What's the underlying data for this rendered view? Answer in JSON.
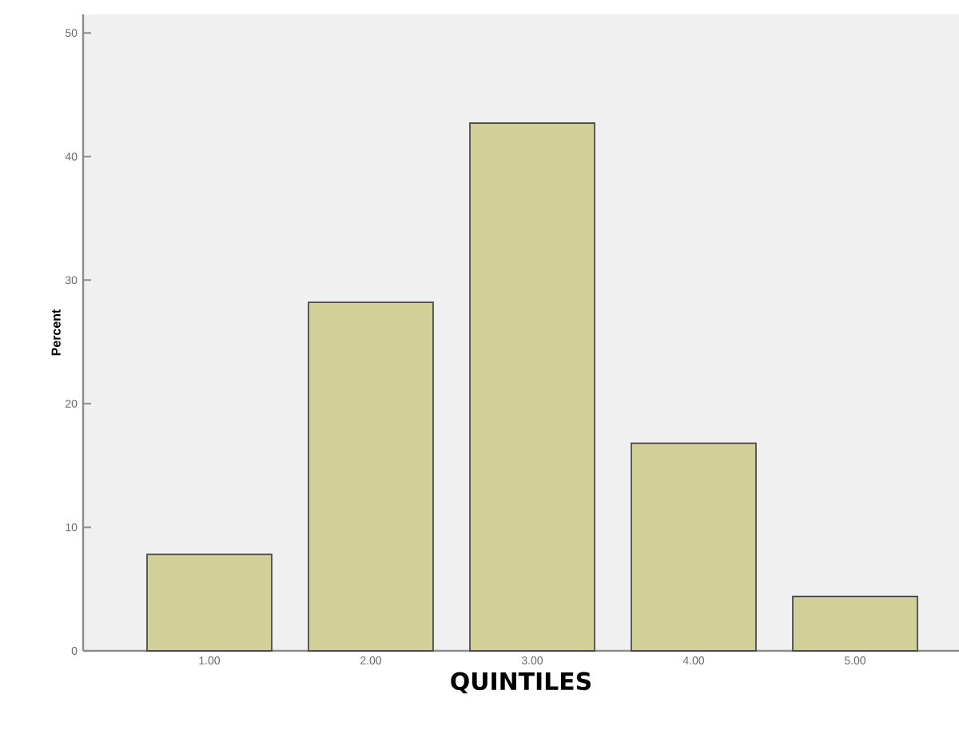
{
  "chart_data": {
    "type": "bar",
    "categories": [
      "1.00",
      "2.00",
      "3.00",
      "4.00",
      "5.00"
    ],
    "values": [
      7.8,
      28.2,
      42.7,
      16.8,
      4.4
    ],
    "color": "#d3cf98",
    "xlabel": "QUINTILES",
    "ylabel": "Percent",
    "ylim": [
      0,
      51.5
    ],
    "yticks": [
      0,
      10,
      20,
      30,
      40,
      50
    ]
  }
}
